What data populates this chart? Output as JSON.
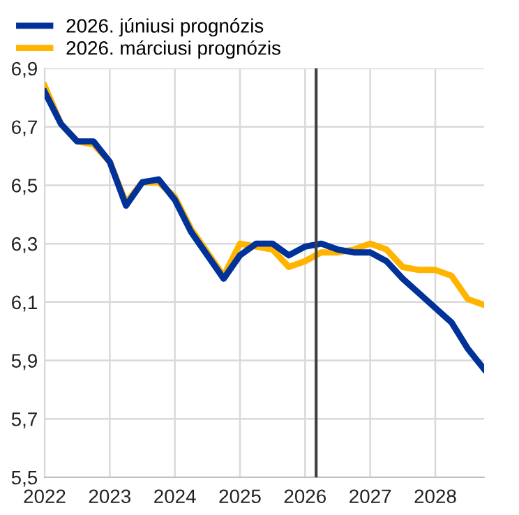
{
  "chart_data": {
    "type": "line",
    "x": [
      2022,
      2022.25,
      2022.5,
      2022.75,
      2023,
      2023.25,
      2023.5,
      2023.75,
      2024,
      2024.25,
      2024.5,
      2024.75,
      2025,
      2025.25,
      2025.5,
      2025.75,
      2026,
      2026.25,
      2026.5,
      2026.75,
      2027,
      2027.25,
      2027.5,
      2027.75,
      2028,
      2028.25,
      2028.5,
      2028.75
    ],
    "series": [
      {
        "name": "2026. márciusi prognózis",
        "color": "#ffb400",
        "values": [
          6.84,
          6.71,
          6.65,
          6.64,
          6.58,
          6.44,
          6.51,
          6.51,
          6.46,
          6.35,
          6.27,
          6.19,
          6.3,
          6.29,
          6.28,
          6.22,
          6.24,
          6.27,
          6.27,
          6.28,
          6.3,
          6.28,
          6.22,
          6.21,
          6.21,
          6.19,
          6.11,
          6.09
        ]
      },
      {
        "name": "2026. júniusi prognózis",
        "color": "#003299",
        "values": [
          6.82,
          6.71,
          6.65,
          6.65,
          6.58,
          6.43,
          6.51,
          6.52,
          6.45,
          6.34,
          6.26,
          6.18,
          6.26,
          6.3,
          6.3,
          6.26,
          6.29,
          6.3,
          6.28,
          6.27,
          6.27,
          6.24,
          6.18,
          6.13,
          6.08,
          6.03,
          5.94,
          5.87
        ]
      }
    ],
    "xlim": [
      2022,
      2028.75
    ],
    "xticks": [
      2022,
      2023,
      2024,
      2025,
      2026,
      2027,
      2028
    ],
    "ylim": [
      5.5,
      6.9
    ],
    "yticks": [
      {
        "value": 5.5,
        "label": "5,5"
      },
      {
        "value": 5.7,
        "label": "5,7"
      },
      {
        "value": 5.9,
        "label": "5,9"
      },
      {
        "value": 6.1,
        "label": "6,1"
      },
      {
        "value": 6.3,
        "label": "6,3"
      },
      {
        "value": 6.5,
        "label": "6,5"
      },
      {
        "value": 6.7,
        "label": "6,7"
      },
      {
        "value": 6.9,
        "label": "6,9"
      }
    ],
    "ref_lines": [
      {
        "axis": "x",
        "value": 2026.17,
        "color": "#404040",
        "line_style": "solid"
      }
    ],
    "grid": true,
    "legend": "top left",
    "marker": "none",
    "line_style": "solid"
  }
}
